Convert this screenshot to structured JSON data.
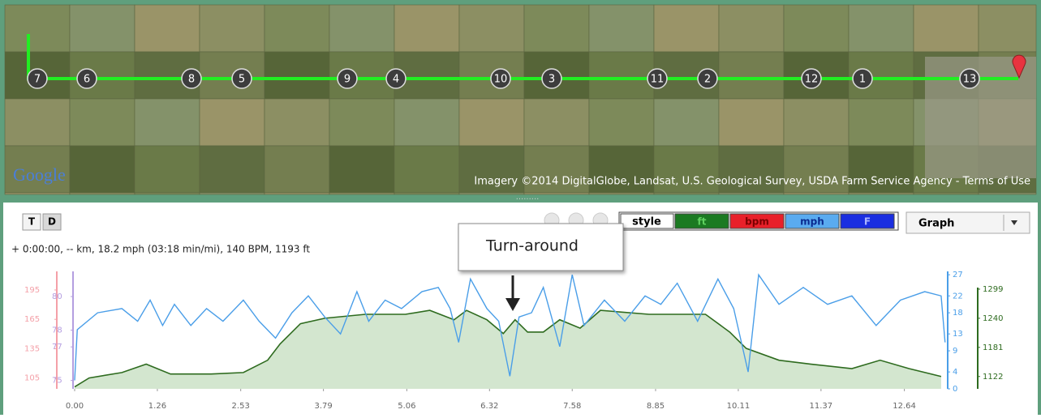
{
  "map": {
    "markers": [
      "7",
      "6",
      "8",
      "5",
      "9",
      "4",
      "10",
      "3",
      "11",
      "2",
      "12",
      "1",
      "13"
    ],
    "logo": "Google",
    "attribution": "Imagery ©2014  DigitalGlobe, Landsat, U.S. Geological Survey, USDA Farm Service Agency - Terms of Use"
  },
  "toolbar": {
    "buttons": [
      "T",
      "D"
    ],
    "style": "style",
    "view": "Graph"
  },
  "status": "+ 0:00:00, -- km, 18.2 mph (03:18 min/mi), 140 BPM, 1193 ft",
  "chart_data": {
    "type": "line",
    "annotation": "Turn-around",
    "xlim": [
      0,
      13.3
    ],
    "xticks": [
      {
        "value": 0,
        "label": "0.00"
      },
      1.26,
      2.53,
      3.79,
      5.06,
      6.32,
      7.58,
      8.85,
      10.11,
      11.37,
      12.64
    ],
    "ylim": [
      1097,
      1335
    ],
    "yticks": [
      1122,
      1181,
      1240,
      1299
    ],
    "y2lim": [
      0,
      27.8
    ],
    "y2ticks": [
      0,
      4,
      9,
      13,
      18,
      22,
      27
    ],
    "series": [
      {
        "name": "ft",
        "color": "#2e6b1f",
        "fill": "#d3e6cf",
        "x": [
          0,
          0.22,
          0.72,
          1.09,
          1.46,
          2.08,
          2.57,
          2.94,
          3.13,
          3.44,
          3.81,
          4.43,
          5.04,
          5.41,
          5.78,
          5.97,
          6.28,
          6.53,
          6.71,
          6.9,
          7.14,
          7.39,
          7.7,
          8.01,
          8.75,
          9.61,
          9.98,
          10.23,
          10.73,
          11.22,
          11.84,
          12.27,
          12.71,
          13.2
        ],
        "values": [
          1101,
          1119,
          1130,
          1147,
          1127,
          1127,
          1130,
          1155,
          1188,
          1229,
          1240,
          1248,
          1248,
          1256,
          1237,
          1256,
          1237,
          1209,
          1237,
          1212,
          1212,
          1237,
          1220,
          1256,
          1248,
          1248,
          1212,
          1179,
          1155,
          1147,
          1138,
          1155,
          1138,
          1122
        ]
      },
      {
        "name": "mph",
        "color": "#4a9ee8",
        "axis": "y2",
        "x": [
          0,
          0.04,
          0.35,
          0.72,
          0.96,
          1.15,
          1.34,
          1.52,
          1.77,
          2.01,
          2.26,
          2.57,
          2.81,
          3.06,
          3.31,
          3.56,
          3.81,
          4.05,
          4.3,
          4.48,
          4.73,
          4.98,
          5.29,
          5.54,
          5.72,
          5.85,
          6.03,
          6.28,
          6.46,
          6.63,
          6.77,
          6.96,
          7.14,
          7.39,
          7.58,
          7.76,
          8.07,
          8.38,
          8.69,
          8.93,
          9.18,
          9.49,
          9.8,
          10.04,
          10.26,
          10.42,
          10.73,
          11.1,
          11.47,
          11.84,
          12.21,
          12.58,
          12.95,
          13.2,
          13.26
        ],
        "values": [
          2,
          14,
          18,
          19,
          16,
          21,
          15,
          20,
          15,
          19,
          16,
          21,
          16,
          12,
          18,
          22,
          17,
          13,
          23,
          16,
          21,
          19,
          23,
          24,
          19,
          11,
          26,
          19,
          16,
          3,
          17,
          18,
          24,
          10,
          27,
          15,
          21,
          16,
          22,
          20,
          25,
          16,
          26,
          19,
          4,
          27,
          20,
          24,
          20,
          22,
          15,
          21,
          23,
          22,
          11
        ]
      }
    ],
    "extra_axes": [
      {
        "name": "bpm",
        "color": "#f4a0a8",
        "lim": [
          94,
          214
        ],
        "ticks": [
          105,
          135,
          165,
          195
        ]
      },
      {
        "name": "F",
        "color": "#b49ee0",
        "lim": [
          74.5,
          81.5
        ],
        "ticks": [
          75,
          77,
          78,
          80
        ]
      }
    ]
  }
}
